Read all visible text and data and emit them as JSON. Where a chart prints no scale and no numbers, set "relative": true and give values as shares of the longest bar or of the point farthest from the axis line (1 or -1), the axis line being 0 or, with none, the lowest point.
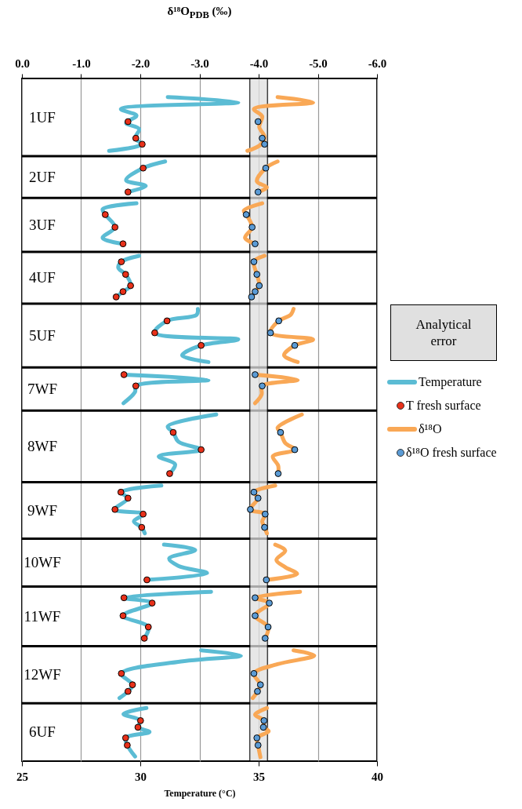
{
  "chart_data": {
    "type": "line",
    "xlabel": "Temperature (°C)",
    "x2label": "δ¹⁸O$_{PDB}$ (‰)",
    "relative": true,
    "xlim": [
      25,
      40
    ],
    "xticks": [
      25,
      30,
      35,
      40
    ],
    "x2lim": [
      0,
      -6
    ],
    "x2ticks": [
      {
        "value": 0,
        "label": "0.0"
      },
      {
        "value": -1,
        "label": "-1.0"
      },
      {
        "value": -2,
        "label": "-2.0"
      },
      {
        "value": -3,
        "label": "-3.0"
      },
      {
        "value": -4,
        "label": "-4.0"
      },
      {
        "value": -5,
        "label": "-5.0"
      },
      {
        "value": -6,
        "label": "-6.0"
      }
    ],
    "grid": "x",
    "legend": "right",
    "bands": [
      {
        "axis": "x2",
        "from": -3.85,
        "to": -4.15,
        "color": "#e0e0e0"
      }
    ],
    "ref_lines": [
      {
        "axis": "y",
        "value": 0.911
      },
      {
        "axis": "y",
        "value": 0.848
      },
      {
        "axis": "y",
        "value": 0.767
      },
      {
        "axis": "y",
        "value": 0.689
      },
      {
        "axis": "y",
        "value": 0.593
      },
      {
        "axis": "y",
        "value": 0.528
      },
      {
        "axis": "y",
        "value": 0.42
      },
      {
        "axis": "y",
        "value": 0.335
      },
      {
        "axis": "y",
        "value": 0.263
      },
      {
        "axis": "y",
        "value": 0.173
      },
      {
        "axis": "y",
        "value": 0.087
      }
    ],
    "annotations": [
      "1UF",
      "2UF",
      "3UF",
      "4UF",
      "5UF",
      "7WF",
      "8WF",
      "9WF",
      "10WF",
      "11WF",
      "12WF",
      "6UF",
      "Analytical error"
    ],
    "series": [
      {
        "name": "Temperature",
        "color": "#5bbcd4",
        "x": [
          31.16,
          34.14,
          29.18,
          29.84,
          29.4,
          29.95,
          29.78,
          30.06,
          28.68,
          null,
          31.05,
          30.12,
          29.4,
          30.23,
          29.45,
          null,
          29.84,
          28.41,
          28.52,
          28.93,
          28.41,
          29.27,
          null,
          29.95,
          29.2,
          29.07,
          29.38,
          29.59,
          29.27,
          28.98,
          null,
          32.43,
          32.38,
          31.13,
          30.61,
          34.14,
          32.57,
          31.77,
          32.88,
          null,
          29.31,
          32.88,
          29.81,
          29.78,
          29.29,
          null,
          33.21,
          31.16,
          31.39,
          31.61,
          32.57,
          30.78,
          31.47,
          31.24,
          null,
          30.89,
          29.18,
          29.48,
          28.93,
          30.12,
          29.73,
          30.06,
          30.19,
          null,
          31.0,
          32.32,
          31.22,
          31.61,
          32.82,
          30.28,
          null,
          32.99,
          29.31,
          30.5,
          29.27,
          30.34,
          30.17,
          null,
          32.57,
          34.25,
          31.72,
          29.2,
          29.67,
          29.48,
          29.12,
          null,
          30.26,
          29.29,
          30.01,
          29.9,
          30.39,
          29.38,
          29.45,
          29.78
        ],
        "values": [
          1.0,
          0.992,
          0.982,
          0.972,
          0.961,
          0.952,
          0.938,
          0.929,
          0.919,
          null,
          0.903,
          0.893,
          0.875,
          0.866,
          0.857,
          null,
          0.84,
          0.831,
          0.823,
          0.804,
          0.788,
          0.779,
          null,
          0.761,
          0.752,
          0.743,
          0.733,
          0.716,
          0.707,
          0.699,
          null,
          0.681,
          0.672,
          0.663,
          0.645,
          0.635,
          0.626,
          0.611,
          0.601,
          null,
          0.582,
          0.574,
          0.565,
          0.556,
          0.539,
          null,
          0.522,
          0.504,
          0.495,
          0.481,
          0.469,
          0.459,
          0.447,
          0.433,
          null,
          0.415,
          0.405,
          0.396,
          0.379,
          0.372,
          0.361,
          0.352,
          0.343,
          null,
          0.326,
          0.318,
          0.305,
          0.294,
          0.283,
          0.273,
          null,
          0.255,
          0.246,
          0.238,
          0.219,
          0.202,
          0.185,
          null,
          0.167,
          0.159,
          0.15,
          0.132,
          0.115,
          0.105,
          0.095,
          null,
          0.08,
          0.071,
          0.061,
          0.051,
          0.044,
          0.035,
          0.024,
          0.007
        ]
      },
      {
        "name": "T fresh surface",
        "type": "scatter",
        "marker": "circle",
        "color": "#e8311a",
        "x": [
          29.48,
          29.81,
          30.08,
          30.12,
          29.48,
          28.52,
          28.93,
          29.27,
          29.2,
          29.38,
          29.59,
          29.27,
          28.98,
          31.13,
          30.61,
          32.57,
          29.31,
          29.81,
          31.39,
          32.57,
          31.24,
          29.18,
          29.48,
          28.93,
          30.12,
          30.06,
          30.28,
          29.31,
          30.5,
          29.27,
          30.34,
          30.17,
          29.2,
          29.67,
          29.48,
          30.01,
          29.9,
          29.38,
          29.45
        ],
        "values": [
          0.963,
          0.938,
          0.929,
          0.893,
          0.857,
          0.823,
          0.804,
          0.779,
          0.752,
          0.733,
          0.716,
          0.707,
          0.699,
          0.663,
          0.645,
          0.626,
          0.582,
          0.565,
          0.495,
          0.469,
          0.433,
          0.405,
          0.396,
          0.379,
          0.372,
          0.352,
          0.273,
          0.246,
          0.238,
          0.219,
          0.202,
          0.185,
          0.132,
          0.115,
          0.105,
          0.061,
          0.051,
          0.035,
          0.024
        ]
      },
      {
        "name": "δ¹⁸O",
        "axis": "x2",
        "color": "#f9a856",
        "x": [
          -4.32,
          -4.92,
          -3.92,
          -4.06,
          -4.01,
          -4.1,
          -4.03,
          -3.81,
          null,
          -4.32,
          -4.12,
          -3.97,
          -4.14,
          -3.99,
          null,
          -4.06,
          -3.75,
          -3.79,
          -3.89,
          -3.77,
          -3.94,
          null,
          -4.1,
          -3.92,
          -3.97,
          -4.01,
          -3.94,
          -3.88,
          null,
          -4.59,
          -4.54,
          -4.34,
          -4.2,
          -4.92,
          -4.61,
          -4.43,
          -4.66,
          null,
          -3.94,
          -4.66,
          -4.06,
          -4.05,
          -3.94,
          null,
          -4.73,
          -4.32,
          -4.37,
          -4.45,
          -4.61,
          -4.24,
          -4.33,
          -4.33,
          null,
          -4.28,
          -3.92,
          -3.99,
          -3.86,
          -4.11,
          -4.06,
          -4.1,
          -4.14,
          null,
          -4.28,
          -4.45,
          -4.3,
          -4.45,
          -4.65,
          -4.13,
          null,
          -4.7,
          -3.94,
          -4.18,
          -3.94,
          -4.16,
          -4.11,
          null,
          -4.59,
          -4.94,
          -4.32,
          -3.92,
          -4.03,
          -3.98,
          -3.9,
          null,
          -4.14,
          -3.94,
          -4.09,
          -4.08,
          -4.17,
          -3.97,
          -3.99,
          -4.03
        ],
        "values": [
          1.0,
          0.992,
          0.982,
          0.971,
          0.955,
          0.94,
          0.928,
          0.919,
          null,
          0.903,
          0.893,
          0.873,
          0.864,
          0.857,
          null,
          0.84,
          0.829,
          0.823,
          0.804,
          0.788,
          0.779,
          null,
          0.761,
          0.752,
          0.733,
          0.716,
          0.707,
          0.699,
          null,
          0.681,
          0.672,
          0.663,
          0.645,
          0.635,
          0.626,
          0.611,
          0.601,
          null,
          0.582,
          0.574,
          0.565,
          0.552,
          0.539,
          null,
          0.522,
          0.502,
          0.495,
          0.479,
          0.469,
          0.459,
          0.445,
          0.433,
          null,
          0.415,
          0.405,
          0.396,
          0.379,
          0.372,
          0.361,
          0.352,
          0.343,
          null,
          0.326,
          0.317,
          0.303,
          0.292,
          0.282,
          0.273,
          null,
          0.255,
          0.246,
          0.238,
          0.219,
          0.202,
          0.185,
          null,
          0.167,
          0.159,
          0.146,
          0.132,
          0.115,
          0.105,
          0.095,
          null,
          0.08,
          0.07,
          0.061,
          0.051,
          0.045,
          0.035,
          0.024,
          0.006
        ]
      },
      {
        "name": "δ¹⁸O fresh surface",
        "type": "scatter",
        "marker": "circle",
        "axis": "x2",
        "color": "#5b9bd5",
        "x": [
          -3.99,
          -4.06,
          -4.1,
          -4.12,
          -3.99,
          -3.79,
          -3.89,
          -3.94,
          -3.92,
          -3.97,
          -4.01,
          -3.94,
          -3.88,
          -4.34,
          -4.2,
          -4.61,
          -3.94,
          -4.06,
          -4.37,
          -4.61,
          -4.33,
          -3.92,
          -3.99,
          -3.86,
          -4.11,
          -4.1,
          -4.13,
          -3.94,
          -4.18,
          -3.94,
          -4.16,
          -4.11,
          -3.92,
          -4.03,
          -3.98,
          -4.09,
          -4.08,
          -3.97,
          -3.99
        ],
        "values": [
          0.963,
          0.938,
          0.929,
          0.893,
          0.857,
          0.823,
          0.804,
          0.779,
          0.752,
          0.733,
          0.716,
          0.707,
          0.699,
          0.663,
          0.645,
          0.626,
          0.582,
          0.565,
          0.495,
          0.469,
          0.433,
          0.405,
          0.396,
          0.379,
          0.372,
          0.352,
          0.273,
          0.246,
          0.238,
          0.219,
          0.202,
          0.185,
          0.132,
          0.115,
          0.105,
          0.061,
          0.051,
          0.035,
          0.024
        ]
      }
    ]
  }
}
